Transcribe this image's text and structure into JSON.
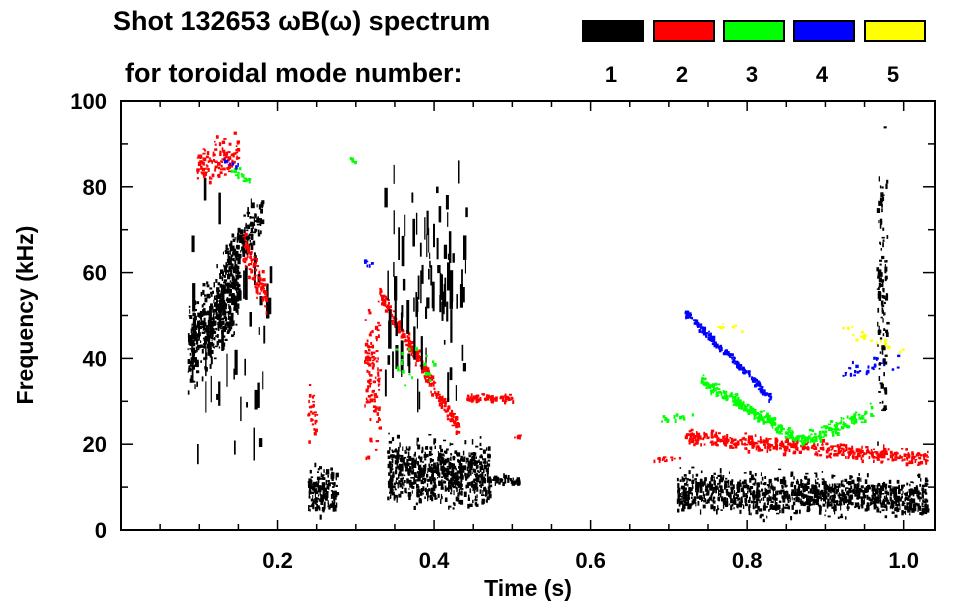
{
  "chart_data": {
    "type": "heatmap",
    "title": "Shot 132653 ωB(ω) spectrum",
    "legend_title": "for toroidal mode number:",
    "legend": [
      {
        "label": "1",
        "color": "#000000"
      },
      {
        "label": "2",
        "color": "#ff0000"
      },
      {
        "label": "3",
        "color": "#00ff00"
      },
      {
        "label": "4",
        "color": "#0000ff"
      },
      {
        "label": "5",
        "color": "#ffff00"
      }
    ],
    "legend_placement": "top-right",
    "xlabel": "Time (s)",
    "ylabel": "Frequency (kHz)",
    "xlim": [
      0,
      1.04
    ],
    "ylim": [
      0,
      100
    ],
    "xticks": [
      "0.2",
      "0.4",
      "0.6",
      "0.8",
      "1.0"
    ],
    "xtick_values": [
      0.2,
      0.4,
      0.6,
      0.8,
      1.0
    ],
    "yticks": [
      "0",
      "20",
      "40",
      "60",
      "80",
      "100"
    ],
    "ytick_values": [
      0,
      20,
      40,
      60,
      80,
      100
    ],
    "features": [
      {
        "mode": 1,
        "t": [
          0.085,
          0.15
        ],
        "f": [
          42,
          58
        ],
        "w": 28,
        "n": 520
      },
      {
        "mode": 1,
        "t": [
          0.13,
          0.18
        ],
        "f": [
          62,
          74
        ],
        "w": 12,
        "n": 140
      },
      {
        "mode": 1,
        "t": [
          0.09,
          0.19
        ],
        "f": [
          50,
          50
        ],
        "w": 90,
        "n": 60,
        "streak": true
      },
      {
        "mode": 2,
        "t": [
          0.095,
          0.15
        ],
        "f": [
          85,
          88
        ],
        "w": 14,
        "n": 120
      },
      {
        "mode": 2,
        "t": [
          0.155,
          0.185
        ],
        "f": [
          66,
          55
        ],
        "w": 14,
        "n": 90
      },
      {
        "mode": 3,
        "t": [
          0.14,
          0.165
        ],
        "f": [
          84,
          82
        ],
        "w": 4,
        "n": 20
      },
      {
        "mode": 4,
        "t": [
          0.13,
          0.15
        ],
        "f": [
          86,
          85
        ],
        "w": 2,
        "n": 8
      },
      {
        "mode": 1,
        "t": [
          0.238,
          0.275
        ],
        "f": [
          10,
          10
        ],
        "w": 16,
        "n": 160
      },
      {
        "mode": 2,
        "t": [
          0.238,
          0.248
        ],
        "f": [
          28,
          28
        ],
        "w": 20,
        "n": 25
      },
      {
        "mode": 3,
        "t": [
          0.29,
          0.3
        ],
        "f": [
          87,
          86
        ],
        "w": 2,
        "n": 5
      },
      {
        "mode": 2,
        "t": [
          0.31,
          0.33
        ],
        "f": [
          35,
          35
        ],
        "w": 45,
        "n": 110
      },
      {
        "mode": 2,
        "t": [
          0.33,
          0.43
        ],
        "f": [
          55,
          24
        ],
        "w": 6,
        "n": 260
      },
      {
        "mode": 1,
        "t": [
          0.34,
          0.47
        ],
        "f": [
          14,
          13
        ],
        "w": 20,
        "n": 700
      },
      {
        "mode": 1,
        "t": [
          0.46,
          0.51
        ],
        "f": [
          12,
          12
        ],
        "w": 3,
        "n": 50
      },
      {
        "mode": 1,
        "t": [
          0.335,
          0.44
        ],
        "f": [
          60,
          60
        ],
        "w": 80,
        "n": 90,
        "streak": true
      },
      {
        "mode": 3,
        "t": [
          0.35,
          0.4
        ],
        "f": [
          40,
          35
        ],
        "w": 20,
        "n": 20
      },
      {
        "mode": 2,
        "t": [
          0.44,
          0.5
        ],
        "f": [
          31,
          31
        ],
        "w": 2.5,
        "n": 80
      },
      {
        "mode": 2,
        "t": [
          0.5,
          0.51
        ],
        "f": [
          22,
          22
        ],
        "w": 2,
        "n": 6
      },
      {
        "mode": 4,
        "t": [
          0.31,
          0.32
        ],
        "f": [
          63,
          62
        ],
        "w": 3,
        "n": 6
      },
      {
        "mode": 1,
        "t": [
          0.71,
          1.03
        ],
        "f": [
          9,
          8
        ],
        "w": 13,
        "n": 1100
      },
      {
        "mode": 2,
        "t": [
          0.72,
          1.03
        ],
        "f": [
          22,
          17
        ],
        "w": 5,
        "n": 450
      },
      {
        "mode": 2,
        "t": [
          0.68,
          0.72
        ],
        "f": [
          17,
          17
        ],
        "w": 2,
        "n": 14
      },
      {
        "mode": 3,
        "t": [
          0.69,
          0.73
        ],
        "f": [
          26,
          27
        ],
        "w": 3,
        "n": 18
      },
      {
        "mode": 3,
        "t": [
          0.74,
          0.87
        ],
        "f": [
          35,
          21
        ],
        "w": 4,
        "n": 230
      },
      {
        "mode": 3,
        "t": [
          0.87,
          0.96
        ],
        "f": [
          21,
          28
        ],
        "w": 5,
        "n": 110
      },
      {
        "mode": 4,
        "t": [
          0.72,
          0.83
        ],
        "f": [
          51,
          31
        ],
        "w": 3,
        "n": 170
      },
      {
        "mode": 4,
        "t": [
          0.92,
          1.0
        ],
        "f": [
          37,
          40
        ],
        "w": 6,
        "n": 30
      },
      {
        "mode": 5,
        "t": [
          0.76,
          0.8
        ],
        "f": [
          48,
          47
        ],
        "w": 2,
        "n": 10
      },
      {
        "mode": 5,
        "t": [
          0.92,
          1.0
        ],
        "f": [
          47,
          42
        ],
        "w": 5,
        "n": 18
      },
      {
        "mode": 1,
        "t": [
          0.965,
          0.978
        ],
        "f": [
          55,
          55
        ],
        "w": 90,
        "n": 110
      }
    ]
  }
}
